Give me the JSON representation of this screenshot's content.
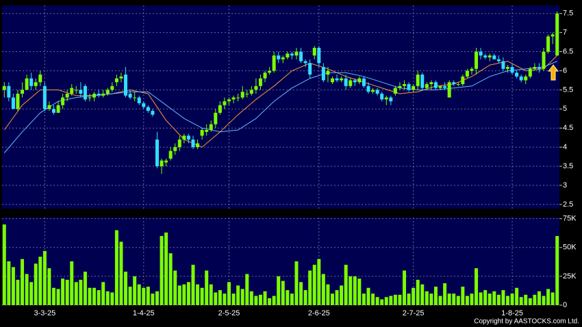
{
  "chart_data": {
    "type": "candlestick",
    "categories": [
      null,
      null,
      null,
      null,
      null,
      null,
      null,
      null,
      null,
      "3-3-25",
      null,
      null,
      null,
      null,
      null,
      null,
      null,
      null,
      null,
      null,
      null,
      null,
      null,
      null,
      null,
      null,
      null,
      null,
      null,
      null,
      null,
      "1-4-25",
      null,
      null,
      null,
      null,
      null,
      null,
      null,
      null,
      null,
      null,
      null,
      null,
      null,
      null,
      null,
      null,
      null,
      null,
      "2-5-25",
      null,
      null,
      null,
      null,
      null,
      null,
      null,
      null,
      null,
      null,
      null,
      null,
      null,
      null,
      null,
      null,
      null,
      null,
      null,
      "2-6-25",
      null,
      null,
      null,
      null,
      null,
      null,
      null,
      null,
      null,
      null,
      null,
      null,
      null,
      null,
      null,
      null,
      null,
      null,
      null,
      null,
      "2-7-25",
      null,
      null,
      null,
      null,
      null,
      null,
      null,
      null,
      null,
      null,
      null,
      null,
      null,
      null,
      null,
      null,
      null,
      null,
      null,
      null,
      null,
      "1-8-25",
      null,
      null,
      null,
      null,
      null,
      null,
      null,
      null,
      null,
      null
    ],
    "open": [
      5.5,
      5.6,
      5.3,
      5.0,
      5.4,
      5.5,
      5.8,
      5.6,
      5.7,
      5.6,
      5.0,
      5.0,
      4.9,
      5.1,
      5.3,
      5.4,
      5.5,
      5.5,
      5.6,
      5.3,
      5.3,
      5.4,
      5.35,
      5.4,
      5.5,
      5.7,
      5.8,
      5.9,
      5.4,
      5.3,
      5.3,
      5.15,
      5.05,
      4.95,
      4.2,
      3.5,
      3.6,
      3.7,
      3.9,
      4.0,
      4.2,
      4.3,
      4.2,
      4.0,
      4.3,
      4.4,
      4.45,
      4.6,
      4.9,
      5.1,
      5.2,
      5.25,
      5.3,
      5.3,
      5.4,
      5.4,
      5.5,
      5.6,
      5.8,
      5.95,
      6.0,
      6.4,
      6.3,
      6.35,
      6.45,
      6.4,
      6.5,
      6.25,
      6.2,
      6.4,
      6.6,
      6.1,
      5.9,
      5.7,
      5.8,
      5.75,
      5.8,
      5.6,
      5.75,
      5.7,
      5.8,
      5.6,
      5.45,
      5.5,
      5.4,
      5.25,
      5.3,
      5.4,
      5.55,
      5.6,
      5.65,
      5.5,
      5.6,
      5.9,
      5.55,
      5.65,
      5.7,
      5.55,
      5.6,
      5.3,
      5.7,
      5.65,
      5.65,
      5.85,
      6.0,
      6.05,
      6.5,
      6.4,
      6.35,
      6.4,
      6.3,
      6.25,
      6.05,
      6.1,
      5.95,
      5.85,
      5.75,
      5.85,
      6.05,
      6.1,
      6.05,
      6.5,
      6.9,
      6.4
    ],
    "high": [
      5.7,
      5.7,
      5.4,
      5.5,
      5.7,
      5.9,
      5.95,
      5.8,
      6.0,
      5.7,
      5.2,
      5.1,
      5.2,
      5.4,
      5.5,
      5.65,
      5.6,
      5.7,
      5.65,
      5.4,
      5.45,
      5.5,
      5.5,
      5.55,
      5.7,
      5.9,
      5.95,
      6.1,
      5.5,
      5.45,
      5.35,
      5.2,
      5.1,
      5.0,
      4.4,
      3.7,
      3.7,
      4.0,
      4.1,
      4.3,
      4.35,
      4.35,
      4.3,
      4.2,
      4.5,
      4.6,
      4.7,
      5.0,
      5.2,
      5.3,
      5.3,
      5.35,
      5.4,
      5.6,
      5.5,
      5.6,
      5.8,
      5.9,
      6.0,
      6.1,
      6.5,
      6.5,
      6.4,
      6.5,
      6.5,
      6.6,
      6.6,
      6.3,
      6.3,
      6.65,
      6.65,
      6.2,
      6.1,
      5.85,
      5.9,
      5.85,
      5.9,
      5.8,
      5.8,
      5.85,
      5.85,
      5.7,
      5.55,
      5.55,
      5.45,
      5.35,
      5.35,
      5.6,
      5.7,
      5.75,
      5.7,
      5.65,
      6.0,
      5.95,
      5.7,
      5.75,
      5.75,
      5.6,
      5.7,
      5.75,
      5.75,
      5.7,
      5.9,
      6.05,
      6.1,
      6.6,
      6.6,
      6.45,
      6.45,
      6.45,
      6.4,
      6.35,
      6.15,
      6.2,
      6.0,
      5.9,
      5.9,
      6.1,
      6.2,
      6.2,
      6.6,
      6.95,
      7.0,
      7.55
    ],
    "low": [
      5.3,
      5.2,
      5.0,
      4.95,
      5.3,
      5.5,
      5.5,
      5.5,
      5.6,
      4.95,
      4.95,
      4.85,
      4.9,
      5.0,
      5.2,
      5.35,
      5.4,
      5.3,
      5.2,
      5.2,
      5.2,
      5.3,
      5.3,
      5.35,
      5.45,
      5.6,
      5.7,
      5.3,
      5.25,
      5.2,
      5.1,
      5.0,
      4.9,
      4.8,
      3.45,
      3.3,
      3.5,
      3.65,
      3.8,
      3.9,
      4.1,
      4.1,
      3.95,
      3.95,
      4.2,
      4.3,
      4.4,
      4.5,
      4.85,
      5.0,
      5.1,
      5.15,
      5.2,
      5.25,
      5.3,
      5.35,
      5.4,
      5.5,
      5.7,
      5.9,
      5.95,
      6.2,
      6.2,
      6.3,
      6.3,
      6.3,
      6.2,
      6.1,
      5.8,
      6.3,
      6.1,
      5.7,
      5.7,
      5.65,
      5.7,
      5.7,
      5.5,
      5.55,
      5.6,
      5.65,
      5.55,
      5.4,
      5.4,
      5.35,
      5.2,
      5.1,
      5.1,
      5.35,
      5.5,
      5.5,
      5.45,
      5.45,
      5.5,
      5.5,
      5.5,
      5.5,
      5.5,
      5.5,
      5.5,
      5.3,
      5.6,
      5.6,
      5.6,
      5.8,
      5.9,
      5.9,
      6.3,
      6.3,
      6.25,
      6.3,
      6.2,
      6.0,
      5.95,
      5.9,
      5.8,
      5.7,
      5.65,
      5.8,
      6.0,
      5.95,
      6.0,
      6.45,
      6.7,
      6.4
    ],
    "close": [
      5.6,
      5.3,
      5.0,
      5.4,
      5.5,
      5.8,
      5.6,
      5.7,
      5.9,
      5.0,
      5.1,
      4.9,
      5.1,
      5.3,
      5.4,
      5.55,
      5.5,
      5.4,
      5.25,
      5.3,
      5.4,
      5.35,
      5.4,
      5.5,
      5.6,
      5.8,
      5.85,
      5.35,
      5.3,
      5.3,
      5.15,
      5.05,
      4.95,
      4.85,
      3.5,
      3.65,
      3.65,
      3.9,
      4.0,
      4.2,
      4.3,
      4.2,
      4.0,
      4.1,
      4.45,
      4.45,
      4.6,
      4.9,
      5.1,
      5.2,
      5.25,
      5.3,
      5.3,
      5.45,
      5.4,
      5.5,
      5.6,
      5.8,
      5.95,
      6.0,
      6.4,
      6.3,
      6.35,
      6.45,
      6.4,
      6.5,
      6.25,
      6.2,
      5.9,
      6.6,
      6.2,
      5.75,
      6.0,
      5.8,
      5.75,
      5.8,
      5.6,
      5.75,
      5.7,
      5.8,
      5.6,
      5.45,
      5.5,
      5.4,
      5.25,
      5.3,
      5.2,
      5.55,
      5.6,
      5.65,
      5.5,
      5.6,
      5.9,
      5.55,
      5.65,
      5.7,
      5.55,
      5.6,
      5.55,
      5.7,
      5.65,
      5.65,
      5.85,
      6.0,
      6.05,
      6.5,
      6.4,
      6.35,
      6.4,
      6.3,
      6.25,
      6.05,
      6.1,
      5.95,
      5.85,
      5.75,
      5.85,
      6.05,
      6.1,
      6.05,
      6.5,
      6.9,
      6.95,
      7.5
    ],
    "up_color": "#7cfc00",
    "down_color": "#33ddff",
    "ylim": [
      2.39,
      7.71
    ],
    "yticks": [
      2.5,
      3,
      3.5,
      4,
      4.5,
      5,
      5.5,
      6,
      6.5,
      7,
      7.5
    ],
    "grid": true,
    "lines": [
      {
        "color": "#ff9933",
        "x": [
          0,
          4,
          8,
          12,
          16,
          20,
          24,
          28,
          32,
          36,
          40,
          44,
          48,
          52,
          56,
          60,
          64,
          68,
          72,
          76,
          80,
          84,
          88,
          92,
          96,
          100,
          104,
          108,
          112,
          116,
          120,
          123
        ],
        "values": [
          4.45,
          5.1,
          5.5,
          5.5,
          5.35,
          5.35,
          5.4,
          5.5,
          5.4,
          4.7,
          4.2,
          4.0,
          4.4,
          4.85,
          5.25,
          5.6,
          6.0,
          6.2,
          6.05,
          5.85,
          5.7,
          5.55,
          5.4,
          5.45,
          5.6,
          5.65,
          5.85,
          6.15,
          6.25,
          6.0,
          6.05,
          6.4
        ]
      },
      {
        "color": "#66bbff",
        "x": [
          0,
          4,
          8,
          12,
          16,
          20,
          24,
          28,
          32,
          36,
          40,
          44,
          48,
          52,
          56,
          60,
          64,
          68,
          72,
          76,
          80,
          84,
          88,
          92,
          96,
          100,
          104,
          108,
          112,
          116,
          120,
          123
        ],
        "values": [
          3.85,
          4.4,
          4.9,
          5.2,
          5.3,
          5.35,
          5.4,
          5.45,
          5.45,
          5.1,
          4.75,
          4.5,
          4.4,
          4.45,
          4.75,
          5.2,
          5.55,
          5.8,
          5.95,
          5.95,
          5.85,
          5.7,
          5.55,
          5.5,
          5.5,
          5.55,
          5.6,
          5.85,
          6.0,
          6.05,
          6.1,
          6.25
        ]
      }
    ],
    "volume": {
      "type": "bar",
      "color": "#7cfc00",
      "values": [
        70000,
        38000,
        33000,
        22000,
        40000,
        27000,
        20000,
        36000,
        42000,
        47000,
        32000,
        15000,
        14000,
        23000,
        22000,
        38000,
        20000,
        22000,
        29000,
        15000,
        15000,
        13000,
        20000,
        12000,
        11000,
        65000,
        55000,
        29000,
        16000,
        25000,
        18000,
        15000,
        16000,
        10000,
        12000,
        60000,
        63000,
        45000,
        30000,
        17000,
        18000,
        20000,
        35000,
        18000,
        15000,
        30000,
        18000,
        11000,
        13000,
        10000,
        20000,
        10000,
        17000,
        14000,
        27000,
        12000,
        8000,
        9000,
        12000,
        6000,
        8000,
        25000,
        21000,
        13000,
        10000,
        38000,
        20000,
        13000,
        30000,
        35000,
        40000,
        27000,
        18000,
        10000,
        13000,
        17000,
        35000,
        25000,
        25000,
        23000,
        10000,
        15000,
        10000,
        7000,
        5000,
        7000,
        8000,
        9000,
        9000,
        30000,
        10000,
        15000,
        22000,
        18000,
        12000,
        10000,
        16000,
        8000,
        19000,
        10000,
        10000,
        8000,
        16000,
        8000,
        10000,
        32000,
        11000,
        13000,
        10000,
        12000,
        9000,
        13000,
        8000,
        10000,
        15000,
        7000,
        9000,
        6000,
        9000,
        12000,
        8000,
        14000,
        11000,
        60000
      ],
      "ylim": [
        0,
        76000
      ],
      "yticks": [
        0,
        {
          "value": 25000,
          "label": "25K"
        },
        {
          "value": 50000,
          "label": "50K"
        },
        {
          "value": 75000,
          "label": "75K"
        }
      ]
    },
    "copyright": "Copyright by AASTOCKS.com Ltd."
  }
}
